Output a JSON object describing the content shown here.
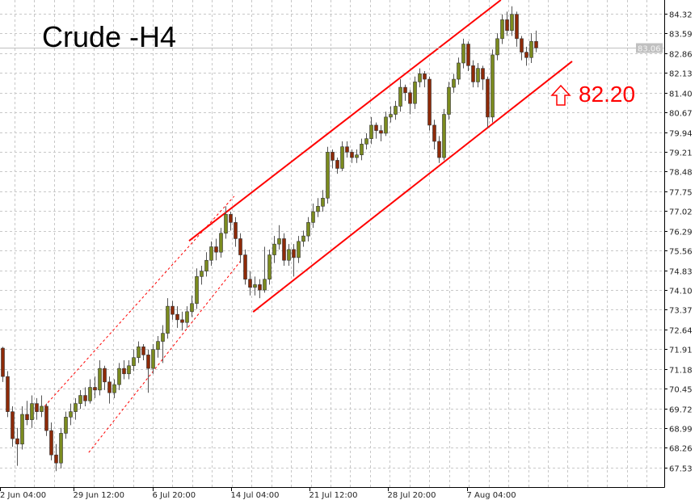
{
  "chart_data": {
    "type": "candlestick",
    "title": "Crude -H4",
    "ylim": [
      66.81,
      84.83
    ],
    "grid": true,
    "y_ticks": [
      "84.32",
      "83.59",
      "82.86",
      "82.13",
      "81.40",
      "80.67",
      "79.94",
      "79.21",
      "78.48",
      "77.75",
      "77.02",
      "76.29",
      "75.56",
      "74.83",
      "74.10",
      "73.37",
      "72.64",
      "71.91",
      "71.18",
      "70.45",
      "69.72",
      "68.99",
      "68.26",
      "67.53"
    ],
    "x_ticks": [
      {
        "label": "2 Jun 04:00",
        "at": -0.5
      },
      {
        "label": "29 Jun 12:00",
        "at": 14.7
      },
      {
        "label": "6 Jul 20:00",
        "at": 31
      },
      {
        "label": "14 Jul 04:00",
        "at": 47.2
      },
      {
        "label": "21 Jul 12:00",
        "at": 63.3
      },
      {
        "label": "28 Jul 20:00",
        "at": 79.5
      },
      {
        "label": "7 Aug 04:00",
        "at": 95.8
      }
    ],
    "current_price": "83.06",
    "colors": {
      "bull": "#7b8b1f",
      "bear": "#8e2a08",
      "channel": "#ff0000",
      "grid": "#c8c8c8",
      "current_line": "#c0c0c0"
    },
    "annotation": {
      "text": "82.20",
      "icon": "up-arrow-outline-icon"
    },
    "channel_lines": [
      {
        "style": "solid",
        "from": [
          38.5,
          75.92
        ],
        "to": [
          102.8,
          84.83
        ]
      },
      {
        "style": "solid",
        "from": [
          51.7,
          73.29
        ],
        "to": [
          117.5,
          82.56
        ]
      },
      {
        "style": "dashed",
        "from": [
          8.7,
          69.8
        ],
        "to": [
          47.8,
          77.57
        ]
      },
      {
        "style": "dashed",
        "from": [
          17.8,
          68.09
        ],
        "to": [
          49.5,
          75.26
        ]
      }
    ],
    "candles": [
      [
        71.95,
        72.0,
        70.7,
        70.9
      ],
      [
        70.9,
        71.1,
        69.4,
        69.6
      ],
      [
        69.6,
        69.8,
        68.3,
        68.6
      ],
      [
        68.6,
        69.0,
        67.6,
        68.4
      ],
      [
        68.4,
        69.8,
        68.2,
        69.5
      ],
      [
        69.5,
        70.0,
        69.1,
        69.3
      ],
      [
        69.3,
        70.2,
        69.0,
        69.9
      ],
      [
        69.9,
        70.1,
        69.3,
        69.6
      ],
      [
        69.6,
        70.2,
        69.4,
        69.8
      ],
      [
        69.8,
        69.9,
        68.7,
        68.9
      ],
      [
        68.9,
        69.2,
        67.8,
        68.0
      ],
      [
        68.0,
        68.4,
        67.4,
        67.7
      ],
      [
        67.7,
        69.0,
        67.5,
        68.8
      ],
      [
        68.8,
        69.6,
        68.6,
        69.4
      ],
      [
        69.4,
        69.9,
        69.1,
        69.6
      ],
      [
        69.6,
        70.1,
        69.3,
        69.9
      ],
      [
        69.9,
        70.4,
        69.7,
        70.2
      ],
      [
        70.2,
        70.5,
        69.8,
        70.0
      ],
      [
        70.0,
        70.8,
        69.9,
        70.5
      ],
      [
        70.5,
        70.9,
        70.1,
        70.4
      ],
      [
        70.4,
        71.5,
        70.2,
        71.2
      ],
      [
        71.2,
        71.3,
        70.4,
        70.7
      ],
      [
        70.7,
        70.9,
        69.9,
        70.3
      ],
      [
        70.3,
        70.8,
        70.1,
        70.6
      ],
      [
        70.6,
        71.4,
        70.4,
        71.2
      ],
      [
        71.2,
        71.5,
        70.8,
        71.0
      ],
      [
        71.0,
        71.5,
        70.8,
        71.3
      ],
      [
        71.3,
        71.9,
        71.1,
        71.6
      ],
      [
        71.6,
        72.2,
        71.4,
        72.0
      ],
      [
        72.0,
        72.1,
        71.5,
        71.7
      ],
      [
        71.7,
        71.9,
        70.3,
        71.2
      ],
      [
        71.2,
        72.1,
        71.0,
        71.9
      ],
      [
        71.9,
        72.4,
        71.6,
        72.2
      ],
      [
        72.2,
        72.8,
        71.4,
        72.5
      ],
      [
        72.5,
        73.8,
        72.3,
        73.5
      ],
      [
        73.5,
        73.7,
        73.0,
        73.2
      ],
      [
        73.2,
        73.5,
        72.7,
        73.0
      ],
      [
        73.0,
        73.3,
        72.6,
        72.9
      ],
      [
        72.9,
        73.5,
        72.7,
        73.3
      ],
      [
        73.3,
        73.9,
        73.1,
        73.6
      ],
      [
        73.6,
        74.9,
        73.4,
        74.6
      ],
      [
        74.6,
        75.0,
        74.3,
        74.8
      ],
      [
        74.8,
        75.5,
        74.6,
        75.2
      ],
      [
        75.2,
        75.9,
        75.0,
        75.7
      ],
      [
        75.7,
        76.0,
        75.2,
        75.5
      ],
      [
        75.5,
        76.4,
        75.3,
        76.2
      ],
      [
        76.2,
        77.2,
        76.0,
        76.9
      ],
      [
        76.9,
        77.0,
        76.3,
        76.6
      ],
      [
        76.6,
        76.8,
        75.7,
        76.0
      ],
      [
        76.0,
        76.2,
        75.1,
        75.4
      ],
      [
        75.4,
        75.6,
        74.3,
        74.5
      ],
      [
        74.5,
        74.8,
        73.9,
        74.2
      ],
      [
        74.2,
        74.6,
        73.9,
        74.3
      ],
      [
        74.3,
        74.5,
        73.8,
        74.1
      ],
      [
        74.1,
        75.7,
        74.0,
        74.5
      ],
      [
        74.5,
        75.6,
        74.3,
        75.4
      ],
      [
        75.4,
        76.1,
        75.1,
        75.8
      ],
      [
        75.8,
        76.5,
        75.6,
        76.0
      ],
      [
        76.0,
        76.2,
        75.0,
        75.2
      ],
      [
        75.2,
        75.8,
        75.0,
        75.6
      ],
      [
        75.6,
        75.8,
        74.6,
        75.3
      ],
      [
        75.3,
        76.1,
        75.1,
        75.9
      ],
      [
        75.9,
        76.3,
        75.7,
        76.1
      ],
      [
        76.1,
        76.8,
        75.9,
        76.6
      ],
      [
        76.6,
        77.3,
        76.4,
        77.0
      ],
      [
        77.0,
        77.5,
        76.8,
        77.2
      ],
      [
        77.2,
        77.8,
        77.0,
        77.5
      ],
      [
        77.5,
        79.4,
        77.3,
        79.2
      ],
      [
        79.2,
        79.3,
        78.6,
        78.9
      ],
      [
        78.9,
        79.0,
        78.4,
        78.6
      ],
      [
        78.6,
        79.6,
        78.5,
        79.4
      ],
      [
        79.4,
        79.6,
        79.0,
        79.2
      ],
      [
        79.2,
        79.3,
        78.8,
        79.0
      ],
      [
        79.0,
        79.3,
        78.8,
        79.1
      ],
      [
        79.1,
        79.7,
        78.9,
        79.5
      ],
      [
        79.5,
        79.9,
        79.3,
        79.7
      ],
      [
        79.7,
        80.5,
        79.5,
        80.2
      ],
      [
        80.2,
        80.3,
        79.7,
        80.0
      ],
      [
        80.0,
        80.2,
        79.6,
        79.9
      ],
      [
        79.9,
        80.7,
        79.8,
        80.5
      ],
      [
        80.5,
        80.9,
        80.3,
        80.6
      ],
      [
        80.6,
        81.1,
        80.4,
        80.9
      ],
      [
        80.9,
        81.9,
        80.7,
        81.6
      ],
      [
        81.6,
        81.7,
        81.1,
        81.4
      ],
      [
        81.4,
        81.5,
        80.6,
        81.0
      ],
      [
        81.0,
        82.0,
        80.8,
        81.8
      ],
      [
        81.8,
        82.3,
        81.6,
        82.1
      ],
      [
        82.1,
        82.2,
        81.6,
        81.9
      ],
      [
        81.9,
        82.0,
        80.0,
        80.2
      ],
      [
        80.2,
        80.4,
        79.3,
        79.6
      ],
      [
        79.6,
        79.8,
        78.8,
        79.0
      ],
      [
        79.0,
        80.8,
        78.9,
        80.6
      ],
      [
        80.6,
        81.8,
        80.4,
        81.6
      ],
      [
        81.6,
        82.1,
        81.4,
        81.9
      ],
      [
        81.9,
        82.7,
        81.7,
        82.5
      ],
      [
        82.5,
        83.4,
        82.3,
        83.2
      ],
      [
        83.2,
        83.3,
        82.2,
        82.4
      ],
      [
        82.4,
        82.6,
        81.6,
        81.8
      ],
      [
        81.8,
        82.5,
        81.6,
        82.3
      ],
      [
        82.3,
        82.4,
        81.5,
        81.9
      ],
      [
        81.9,
        82.0,
        80.1,
        80.5
      ],
      [
        80.5,
        83.0,
        80.3,
        82.8
      ],
      [
        82.8,
        83.6,
        82.6,
        83.4
      ],
      [
        83.4,
        84.3,
        83.2,
        84.1
      ],
      [
        84.1,
        84.4,
        83.5,
        83.7
      ],
      [
        83.7,
        84.6,
        83.5,
        84.3
      ],
      [
        84.3,
        84.4,
        83.1,
        83.4
      ],
      [
        83.4,
        83.5,
        82.6,
        82.9
      ],
      [
        82.9,
        83.1,
        82.4,
        82.7
      ],
      [
        82.7,
        83.6,
        82.5,
        83.3
      ],
      [
        83.3,
        83.7,
        82.9,
        83.06
      ]
    ]
  }
}
